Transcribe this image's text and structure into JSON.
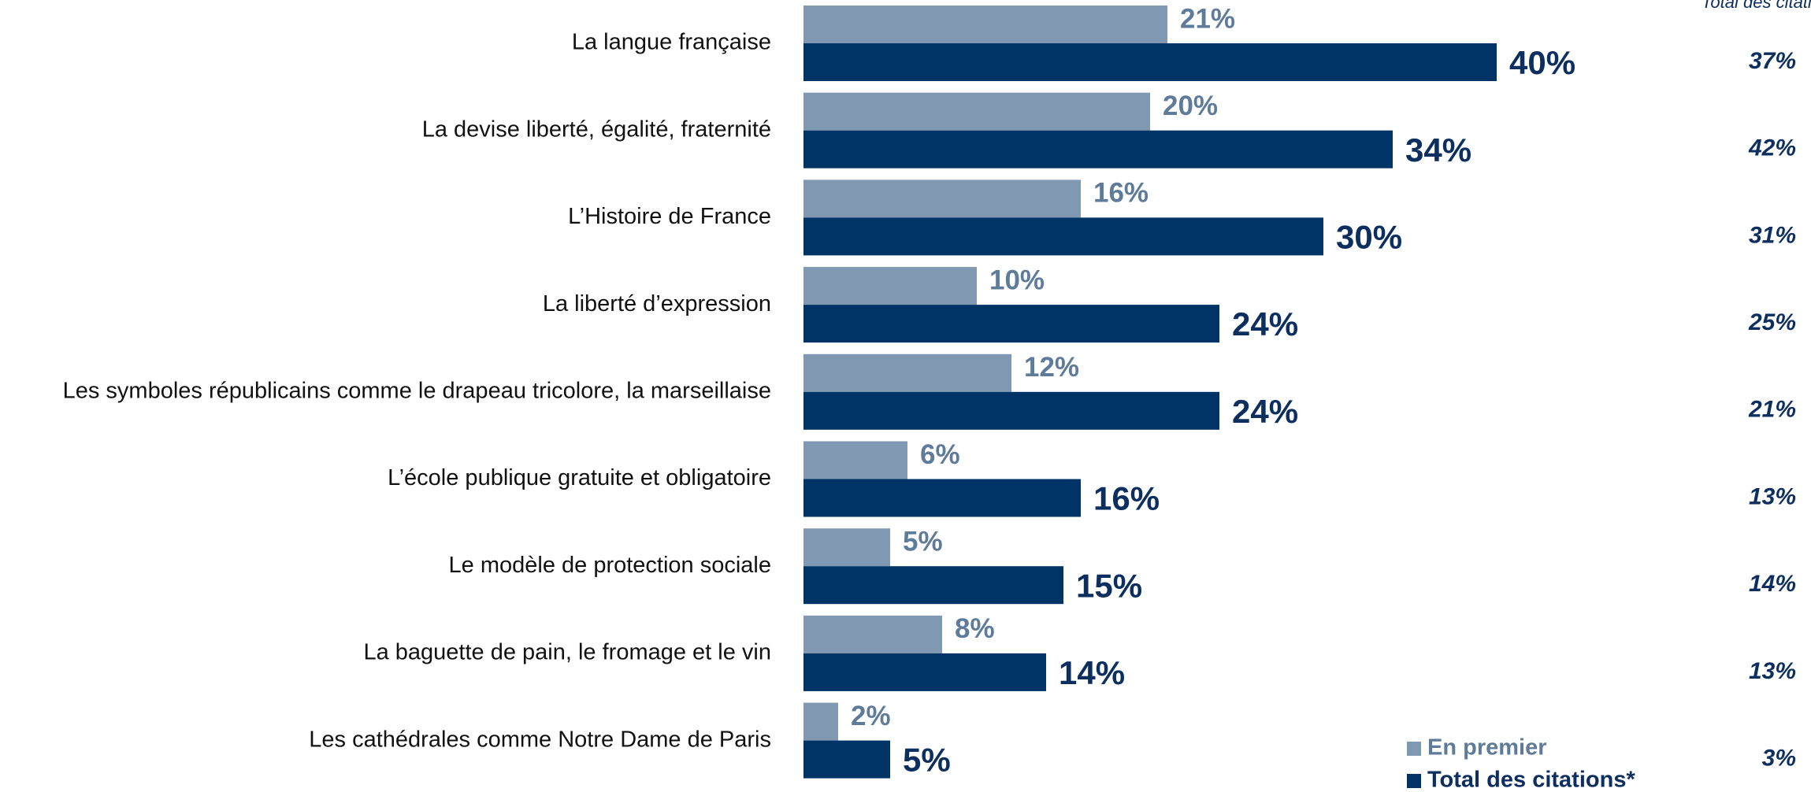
{
  "chart_data": {
    "type": "bar",
    "orientation": "horizontal",
    "categories": [
      "La langue française",
      "La devise liberté, égalité, fraternité",
      "L’Histoire de France",
      "La liberté d’expression",
      "Les symboles républicains comme le drapeau tricolore, la marseillaise",
      "L’école publique gratuite et obligatoire",
      "Le modèle de protection sociale",
      "La baguette de pain, le fromage et le vin",
      "Les cathédrales comme Notre Dame de Paris"
    ],
    "series": [
      {
        "name": "En premier",
        "color": "#8098b2",
        "values": [
          21,
          20,
          16,
          10,
          12,
          6,
          5,
          8,
          2
        ],
        "value_labels": [
          "21%",
          "20%",
          "16%",
          "10%",
          "12%",
          "6%",
          "5%",
          "8%",
          "2%"
        ]
      },
      {
        "name": "Total des citations*",
        "color": "#003366",
        "values": [
          40,
          34,
          30,
          24,
          24,
          16,
          15,
          14,
          5
        ],
        "value_labels": [
          "40%",
          "34%",
          "30%",
          "24%",
          "24%",
          "16%",
          "15%",
          "14%",
          "5%"
        ]
      }
    ],
    "comparison": {
      "header": "Total des citations",
      "values": [
        37,
        42,
        31,
        25,
        21,
        13,
        14,
        13,
        3
      ],
      "value_labels": [
        "37%",
        "42%",
        "31%",
        "25%",
        "21%",
        "13%",
        "14%",
        "13%",
        "3%"
      ]
    },
    "legend": "bottom-right"
  }
}
